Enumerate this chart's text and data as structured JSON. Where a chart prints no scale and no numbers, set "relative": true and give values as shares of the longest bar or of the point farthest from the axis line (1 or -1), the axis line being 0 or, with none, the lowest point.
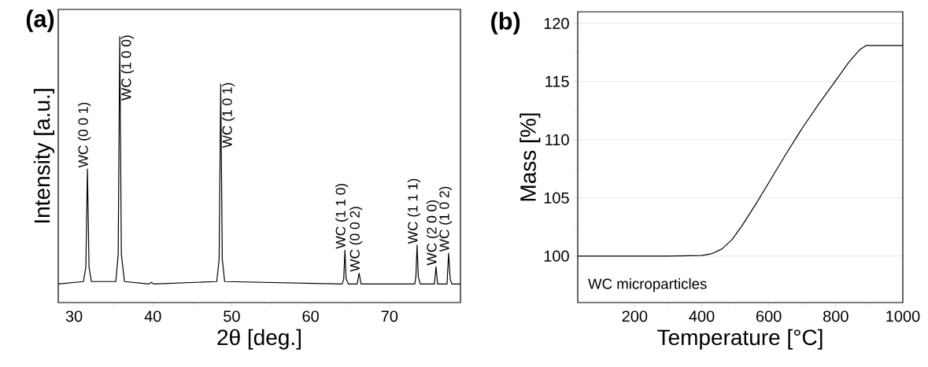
{
  "chart_data": [
    {
      "type": "line",
      "title": "(a)",
      "xlabel": "2θ [deg.]",
      "ylabel": "Intensity [a.u.]",
      "relative": true,
      "xlim": [
        28,
        79
      ],
      "xticks": [
        30,
        40,
        50,
        60,
        70
      ],
      "series": [
        {
          "color": "#000000",
          "x": [
            28,
            31.2,
            31.5,
            31.7,
            31.9,
            32.2,
            35.3,
            35.6,
            35.8,
            36.0,
            36.4,
            39.5,
            39.8,
            40.1,
            48.1,
            48.4,
            48.6,
            48.8,
            49.1,
            64.0,
            64.2,
            64.35,
            64.5,
            64.8,
            65.9,
            66.15,
            66.4,
            73.2,
            73.35,
            73.5,
            73.65,
            73.9,
            75.7,
            75.9,
            76.1,
            77.3,
            77.5,
            77.7,
            77.9,
            79
          ],
          "values": [
            0,
            0.01,
            0.07,
            0.465,
            0.07,
            0.01,
            0.01,
            0.12,
            1.0,
            0.12,
            0.01,
            0,
            0.007,
            0,
            0.01,
            0.1,
            0.808,
            0.1,
            0.01,
            0,
            0.02,
            0.137,
            0.02,
            0,
            0,
            0.044,
            0,
            0,
            0.03,
            0.157,
            0.03,
            0,
            0,
            0.07,
            0,
            0,
            0.125,
            0.02,
            0,
            0
          ]
        }
      ],
      "annotations": [
        {
          "text": "WC (0 0 1)",
          "x": 31.7,
          "y": 0.465
        },
        {
          "text": "WC (1 0 0)",
          "x": 35.8,
          "y": 1.0
        },
        {
          "text": "WC (1 0 1)",
          "x": 48.6,
          "y": 0.808
        },
        {
          "text": "WC (1 1 0)",
          "x": 64.35,
          "y": 0.137
        },
        {
          "text": "WC (0 0 2)",
          "x": 66.15,
          "y": 0.044
        },
        {
          "text": "WC (1 1 1)",
          "x": 73.5,
          "y": 0.157
        },
        {
          "text": "WC (2 0 0)",
          "x": 75.9,
          "y": 0.07
        },
        {
          "text": "WC (1 0 2)",
          "x": 77.5,
          "y": 0.125
        }
      ]
    },
    {
      "type": "line",
      "title": "(b)",
      "xlabel": "Temperature [°C]",
      "ylabel": "Mass [%]",
      "grid": "y",
      "xlim": [
        30,
        1000
      ],
      "xticks": [
        200,
        400,
        600,
        800,
        1000
      ],
      "ylim": [
        96,
        121
      ],
      "yticks": [
        100,
        105,
        110,
        115,
        120
      ],
      "series": [
        {
          "color": "#000000",
          "x": [
            30,
            100,
            200,
            300,
            400,
            430,
            460,
            490,
            520,
            560,
            600,
            650,
            700,
            750,
            800,
            840,
            870,
            890,
            920,
            1000
          ],
          "values": [
            100,
            100,
            100,
            100,
            100.05,
            100.2,
            100.6,
            101.4,
            102.6,
            104.4,
            106.3,
            108.7,
            111.0,
            113.1,
            115.1,
            116.7,
            117.7,
            118.1,
            118.1,
            118.1
          ]
        }
      ],
      "annotations": [
        "WC microparticles"
      ]
    }
  ]
}
